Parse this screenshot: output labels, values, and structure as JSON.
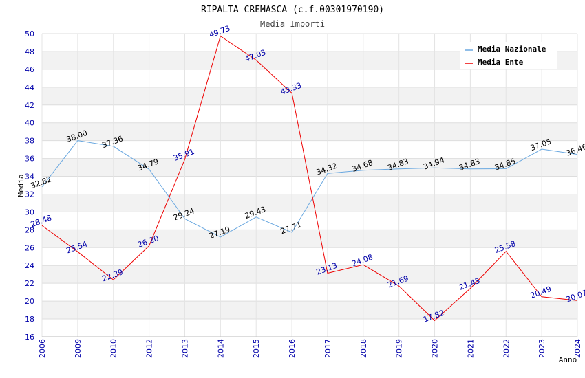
{
  "chart_data": {
    "type": "line",
    "title": "RIPALTA CREMASCA (c.f.00301970190)",
    "subtitle": "Media Importi",
    "xlabel": "Anno",
    "ylabel": "Media",
    "categories": [
      "2006",
      "2009",
      "2010",
      "2012",
      "2013",
      "2014",
      "2015",
      "2016",
      "2017",
      "2018",
      "2019",
      "2020",
      "2021",
      "2022",
      "2023",
      "2024"
    ],
    "ylim": [
      16,
      50
    ],
    "yticks": [
      16,
      18,
      20,
      22,
      24,
      26,
      28,
      30,
      32,
      34,
      36,
      38,
      40,
      42,
      44,
      46,
      48,
      50
    ],
    "grid": true,
    "legend_position": "top-right",
    "series": [
      {
        "name": "Media Nazionale",
        "color": "#6aa8e0",
        "label_color": "#000000",
        "values": [
          32.82,
          38.0,
          37.36,
          34.79,
          29.24,
          27.19,
          29.43,
          27.71,
          34.32,
          34.68,
          34.83,
          34.94,
          34.83,
          34.85,
          37.05,
          36.46
        ],
        "labels": [
          "32.82",
          "38.00",
          "37.36",
          "34.79",
          "29.24",
          "27.19",
          "29.43",
          "27.71",
          "34.32",
          "34.68",
          "34.83",
          "34.94",
          "34.83",
          "34.85",
          "37.05",
          "36.46"
        ]
      },
      {
        "name": "Media Ente",
        "color": "#ee0000",
        "label_color": "#0000aa",
        "values": [
          28.48,
          25.54,
          22.39,
          26.2,
          35.91,
          49.73,
          47.03,
          43.33,
          23.13,
          24.08,
          21.69,
          17.82,
          21.43,
          25.58,
          20.49,
          20.07
        ],
        "labels": [
          "28.48",
          "25.54",
          "22.39",
          "26.20",
          "35.91",
          "49.73",
          "47.03",
          "43.33",
          "23.13",
          "24.08",
          "21.69",
          "17.82",
          "21.43",
          "25.58",
          "20.49",
          "20.07"
        ]
      }
    ]
  }
}
